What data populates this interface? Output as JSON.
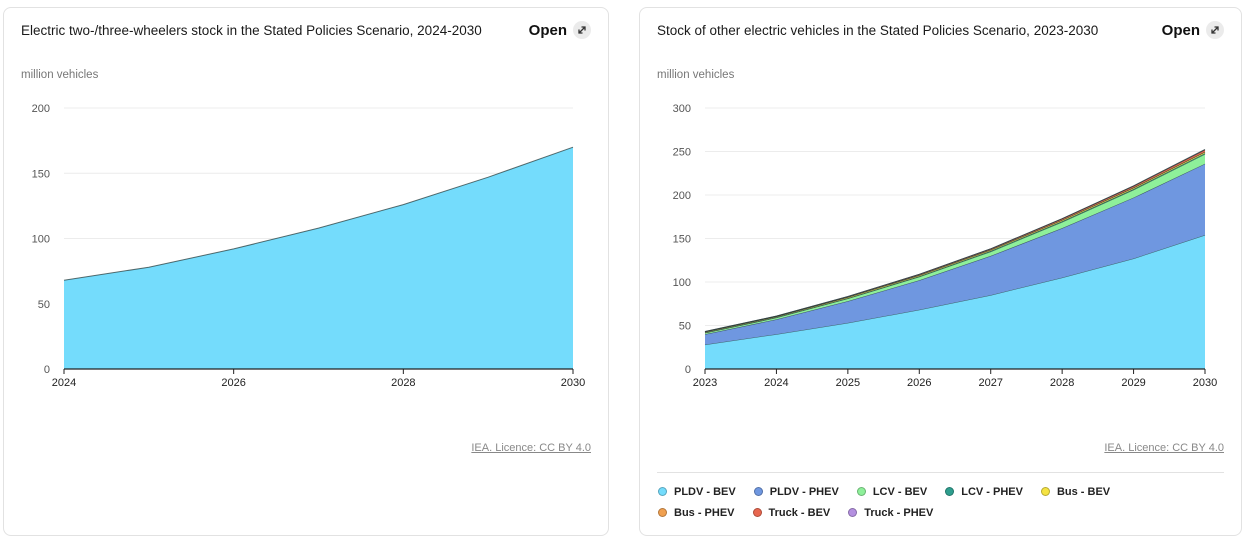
{
  "left_card": {
    "title": "Electric two-/three-wheelers stock in the Stated Policies Scenario, 2024-2030",
    "open_label": "Open",
    "unit": "million vehicles",
    "licence": "IEA. Licence: CC BY 4.0"
  },
  "right_card": {
    "title": "Stock of other electric vehicles in the Stated Policies Scenario, 2023-2030",
    "open_label": "Open",
    "unit": "million vehicles",
    "licence": "IEA. Licence: CC BY 4.0"
  },
  "chart_data": [
    {
      "type": "area",
      "title": "Electric two-/three-wheelers stock in the Stated Policies Scenario, 2024-2030",
      "ylabel": "million vehicles",
      "x": [
        2024,
        2025,
        2026,
        2027,
        2028,
        2029,
        2030
      ],
      "x_ticks": [
        "2024",
        "2026",
        "2028",
        "2030"
      ],
      "y_ticks": [
        0,
        50,
        100,
        150,
        200
      ],
      "ylim": [
        0,
        200
      ],
      "grid": true,
      "series": [
        {
          "values": [
            68,
            78,
            92,
            108,
            126,
            147,
            170
          ],
          "color": "#74dcfc"
        }
      ]
    },
    {
      "type": "area",
      "stacked": true,
      "title": "Stock of other electric vehicles in the Stated Policies Scenario, 2023-2030",
      "ylabel": "million vehicles",
      "x": [
        2023,
        2024,
        2025,
        2026,
        2027,
        2028,
        2029,
        2030
      ],
      "x_ticks": [
        "2023",
        "2024",
        "2025",
        "2026",
        "2027",
        "2028",
        "2029",
        "2030"
      ],
      "y_ticks": [
        0,
        50,
        100,
        150,
        200,
        250,
        300
      ],
      "ylim": [
        0,
        300
      ],
      "grid": true,
      "legend_position": "bottom",
      "series": [
        {
          "name": "PLDV - BEV",
          "color": "#74dcfc",
          "values": [
            28,
            40,
            53,
            68,
            85,
            105,
            127,
            154
          ]
        },
        {
          "name": "PLDV - PHEV",
          "color": "#6f97e0",
          "values": [
            12,
            17,
            25,
            34,
            45,
            57,
            70,
            82
          ]
        },
        {
          "name": "LCV - BEV",
          "color": "#8ef09a",
          "values": [
            1.5,
            2,
            3,
            4,
            5,
            7,
            9,
            11
          ]
        },
        {
          "name": "LCV - PHEV",
          "color": "#2e9e8e",
          "values": [
            0.3,
            0.4,
            0.5,
            0.6,
            0.7,
            0.8,
            0.9,
            1
          ]
        },
        {
          "name": "Bus - BEV",
          "color": "#f5e342",
          "values": [
            0.8,
            0.9,
            1,
            1.1,
            1.2,
            1.3,
            1.4,
            1.5
          ]
        },
        {
          "name": "Bus - PHEV",
          "color": "#f0a050",
          "values": [
            0.1,
            0.1,
            0.1,
            0.2,
            0.2,
            0.2,
            0.3,
            0.3
          ]
        },
        {
          "name": "Truck - BEV",
          "color": "#e8674f",
          "values": [
            0.3,
            0.4,
            0.6,
            0.8,
            1,
            1.3,
            1.7,
            2.2
          ]
        },
        {
          "name": "Truck - PHEV",
          "color": "#b490e0",
          "values": [
            0.05,
            0.05,
            0.1,
            0.1,
            0.1,
            0.2,
            0.2,
            0.3
          ]
        }
      ]
    }
  ]
}
